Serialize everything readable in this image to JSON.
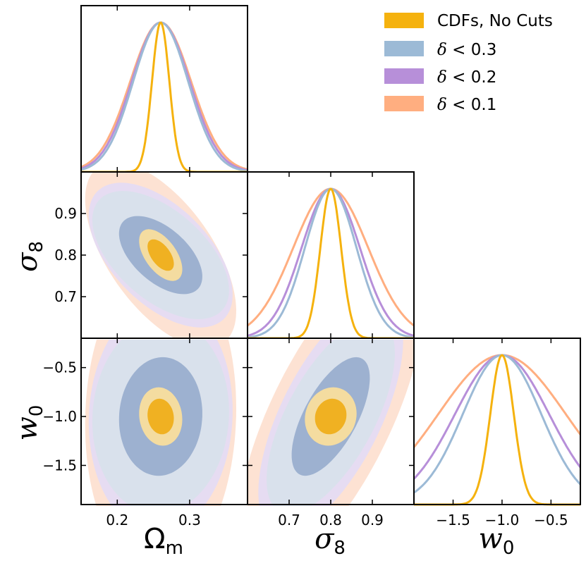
{
  "chart_data": {
    "type": "corner",
    "parameters": [
      {
        "key": "om",
        "label": "Ω",
        "label_sub": "m",
        "range": [
          0.15,
          0.38
        ],
        "ticks": [
          0.2,
          0.3
        ],
        "tick_labels": [
          "0.2",
          "0.3"
        ]
      },
      {
        "key": "s8",
        "label": "σ",
        "label_sub": "8",
        "range": [
          0.6,
          1.0
        ],
        "ticks": [
          0.7,
          0.8,
          0.9
        ],
        "tick_labels": [
          "0.7",
          "0.8",
          "0.9"
        ]
      },
      {
        "key": "w0",
        "label": "w",
        "label_sub": "0",
        "range": [
          -1.9,
          -0.2
        ],
        "ticks": [
          -1.5,
          -1.0,
          -0.5
        ],
        "tick_labels": [
          "−1.5",
          "−1.0",
          "−0.5"
        ]
      }
    ],
    "series": [
      {
        "name": "CDFs, No Cuts",
        "name_prefix": "",
        "name_value": "CDFs, No Cuts",
        "color": "#f5b20e",
        "inner_color": "#f0b122",
        "outer_color": "#f4dca0",
        "mean": [
          0.26,
          0.8,
          -1.0
        ],
        "sigma": [
          0.012,
          0.025,
          0.12
        ],
        "corr": {
          "om_s8": -0.55,
          "om_w0": -0.1,
          "s8_w0": 0.1
        }
      },
      {
        "name": "δ < 0.3",
        "name_prefix": "δ",
        "name_value": " < 0.3",
        "color": "#9cbad6",
        "inner_color": "#9db1d0",
        "outer_color": "#d9e1ec",
        "mean": [
          0.26,
          0.8,
          -1.0
        ],
        "sigma": [
          0.038,
          0.062,
          0.4
        ],
        "corr": {
          "om_s8": -0.55,
          "om_w0": 0.05,
          "s8_w0": 0.65
        }
      },
      {
        "name": "δ < 0.2",
        "name_prefix": "δ",
        "name_value": " < 0.2",
        "color": "#b78fd9",
        "inner_color": "#c7b4e3",
        "outer_color": "#e6dcf2",
        "mean": [
          0.26,
          0.8,
          -1.0
        ],
        "sigma": [
          0.04,
          0.07,
          0.48
        ],
        "corr": {
          "om_s8": -0.55,
          "om_w0": 0.05,
          "s8_w0": 0.65
        }
      },
      {
        "name": "δ < 0.1",
        "name_prefix": "δ",
        "name_value": " < 0.1",
        "color": "#ffae80",
        "inner_color": "#ffc9ab",
        "outer_color": "#fde2d3",
        "mean": [
          0.26,
          0.8,
          -1.0
        ],
        "sigma": [
          0.042,
          0.09,
          0.65
        ],
        "corr": {
          "om_s8": -0.6,
          "om_w0": 0.05,
          "s8_w0": 0.7
        }
      }
    ],
    "legend_position": "top-right",
    "grid": false
  }
}
